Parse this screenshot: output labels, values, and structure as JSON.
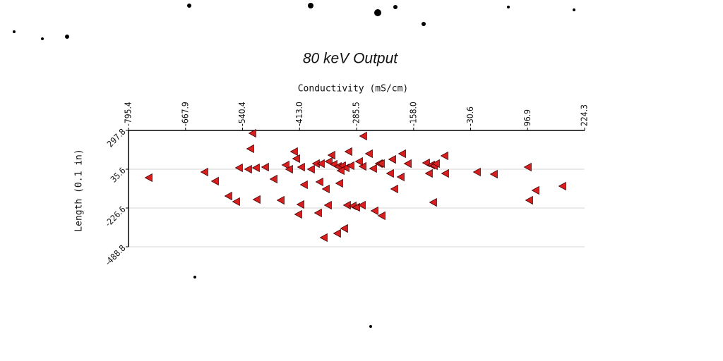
{
  "chart_data": {
    "type": "scatter",
    "title": "80 keV Output",
    "x_label": "Conductivity (mS/cm)",
    "y_label": "Length (0.1 in)",
    "xlim": [
      -795.4,
      224.3
    ],
    "xticks": [
      -795.4,
      -667.9,
      -540.4,
      {
        "value": -413,
        "label": "-413.0"
      },
      -285.5,
      {
        "value": -158,
        "label": "-158.0"
      },
      -30.6,
      96.9,
      224.3
    ],
    "ylim": [
      -488.8,
      297.8
    ],
    "yticks": [
      -488.8,
      -226.6,
      35.6,
      297.8
    ],
    "grid": true,
    "series": [
      {
        "color": "#d81e1e",
        "marker": "triangle-left",
        "x": [
          -749.6,
          -624.9,
          -601.2,
          -517.6,
          -522.3,
          -547.6,
          -527.1,
          -509.7,
          -489.2,
          -470.2,
          -571.3,
          -553.9,
          -508.1,
          -454.4,
          -443.4,
          -435.5,
          -424.5,
          -419.7,
          -408.7,
          -402.4,
          -410.2,
          -415.0,
          -386.6,
          -375.5,
          -364.5,
          -367.6,
          -353.4,
          -347.1,
          -340.8,
          -336.1,
          -326.6,
          -317.1,
          -309.2,
          -302.9,
          -298.2,
          -320.3,
          -323.4,
          -348.7,
          -370.8,
          -358.2,
          -328.2,
          -312.4,
          -306.1,
          -293.4,
          -285.5,
          -272.9,
          -269.8,
          -271.3,
          -279.2,
          -257.1,
          -247.7,
          -235.0,
          -230.3,
          -209.8,
          -205.0,
          -182.9,
          -170.3,
          -186.1,
          -200.3,
          -244.5,
          -228.7,
          -129.3,
          -123.0,
          -118.2,
          -111.9,
          -107.2,
          -88.2,
          -86.7,
          -113.5,
          -15.6,
          22.3,
          98.0,
          115.4,
          101.2,
          175.4
        ],
        "values": [
          -21.6,
          16.5,
          -45.4,
          278.7,
          173.9,
          45.1,
          35.6,
          45.1,
          49.9,
          -31.1,
          -145.6,
          -183.7,
          -169.4,
          -174.2,
          64.2,
          35.6,
          154.8,
          107.1,
          49.9,
          -69.3,
          -202.8,
          -269.5,
          35.6,
          73.7,
          73.7,
          -50.2,
          -97.9,
          88.0,
          130.9,
          69.0,
          54.7,
          59.4,
          45.1,
          154.8,
          59.4,
          26.1,
          -59.7,
          -207.5,
          -260.0,
          -426.8,
          -398.2,
          -364.9,
          -207.5,
          -212.3,
          -221.8,
          -207.5,
          259.7,
          54.7,
          88.0,
          140.5,
          40.4,
          73.7,
          73.7,
          7.0,
          102.3,
          140.5,
          73.7,
          -16.8,
          -97.9,
          -245.7,
          -279.0,
          78.5,
          7.0,
          64.2,
          59.4,
          73.7,
          126.2,
          7.0,
          -188.5,
          16.5,
          2.2,
          49.9,
          -107.4,
          -174.2,
          -78.8
        ]
      }
    ]
  }
}
